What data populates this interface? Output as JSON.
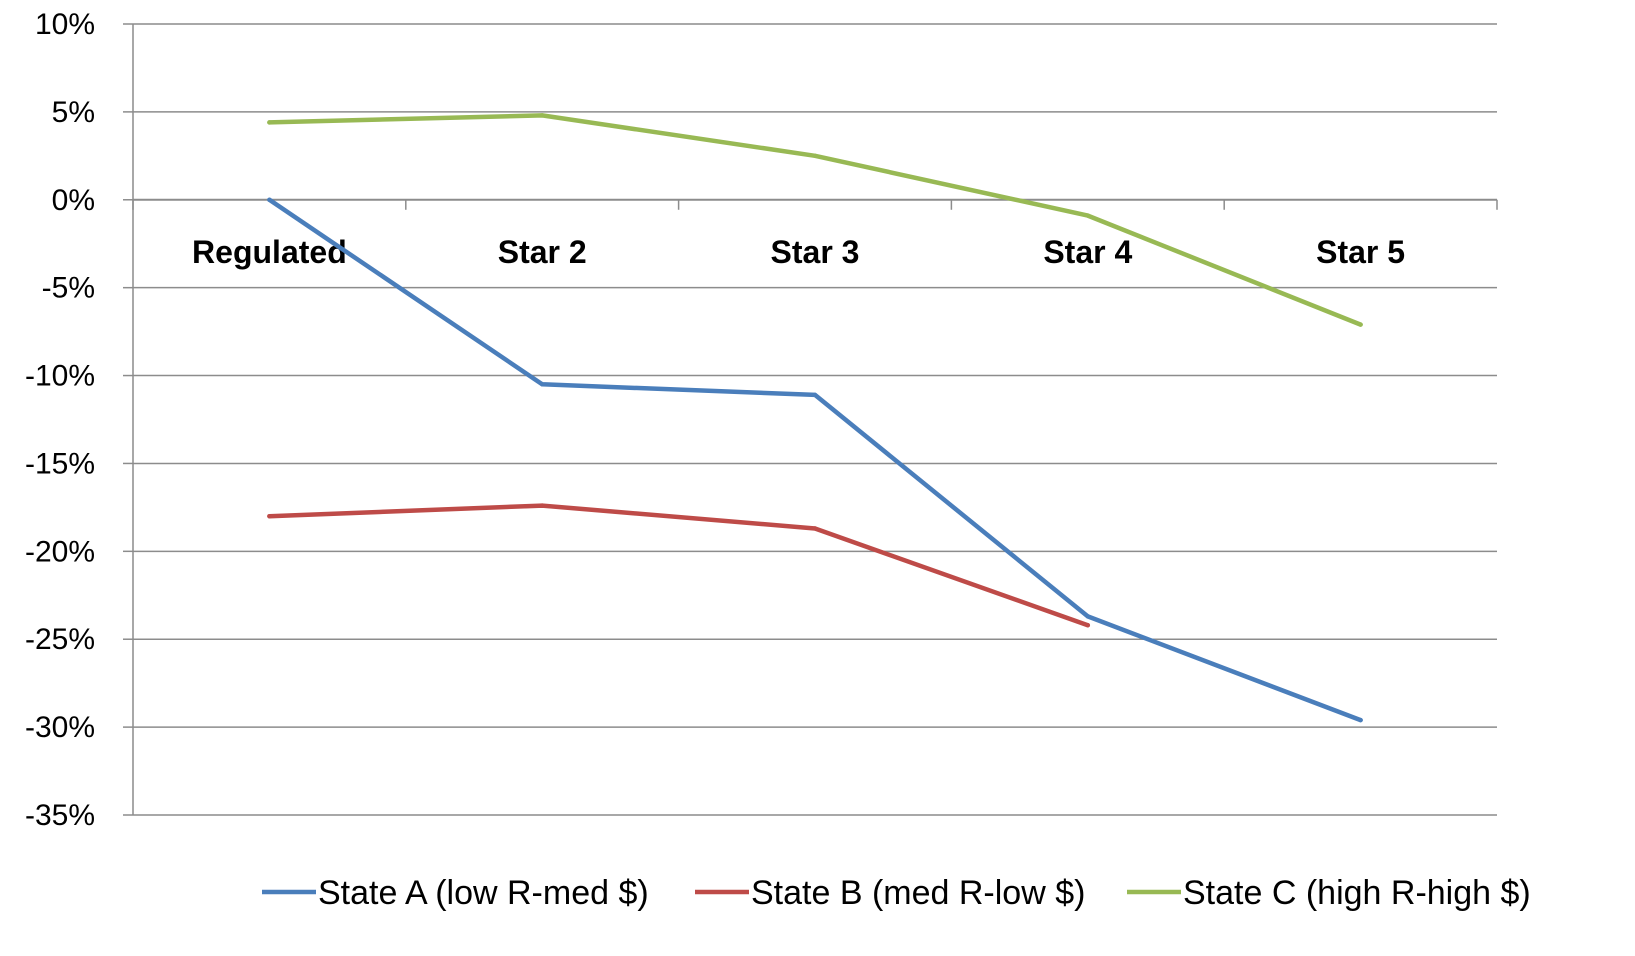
{
  "chart_data": {
    "type": "line",
    "title": "",
    "xlabel": "",
    "ylabel": "",
    "categories": [
      "Regulated",
      "Star 2",
      "Star 3",
      "Star 4",
      "Star 5"
    ],
    "y_tick_labels": [
      "10%",
      "5%",
      "0%",
      "-5%",
      "-10%",
      "-15%",
      "-20%",
      "-25%",
      "-30%",
      "-35%"
    ],
    "ylim": [
      -35,
      10
    ],
    "y_unit": "%",
    "grid": true,
    "legend_position": "bottom",
    "series": [
      {
        "name": "State A (low R-med $)",
        "color": "#4a7ebb",
        "values": [
          0.0,
          -10.5,
          -11.1,
          -23.7,
          -29.6
        ]
      },
      {
        "name": "State B (med R-low $)",
        "color": "#be4b48",
        "values": [
          -18.0,
          -17.4,
          -18.7,
          -24.2,
          null
        ]
      },
      {
        "name": "State C (high R-high $)",
        "color": "#98b954",
        "values": [
          4.4,
          4.8,
          2.5,
          -0.9,
          -7.1
        ]
      }
    ]
  }
}
